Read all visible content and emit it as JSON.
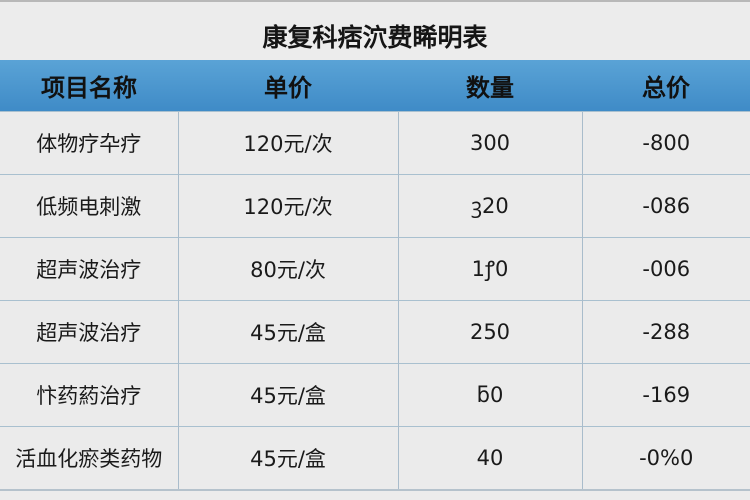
{
  "title": "康复科痞泬费睎明表",
  "colors": {
    "header_bg": "#4a95cd",
    "grid": "#a9c0cf",
    "background": "#ececec"
  },
  "table": {
    "headers": [
      "项目名称",
      "单价",
      "数量",
      "总价"
    ],
    "rows": [
      [
        "体物疗卆疗",
        "120元/次",
        "300",
        "-800"
      ],
      [
        "低频电刺激",
        "120元/次",
        "ꝫ20",
        "-086"
      ],
      [
        "超声波治疗",
        "80元/次",
        "1ꝭ0",
        "-006"
      ],
      [
        "超声波治疗",
        "45元/盒",
        "250",
        "-288"
      ],
      [
        "忭药葯治疗",
        "45元/盒",
        "ƃ0",
        "-169"
      ],
      [
        "活血化瘀类药物",
        "45元/盒",
        "40",
        "-0%0"
      ]
    ]
  }
}
